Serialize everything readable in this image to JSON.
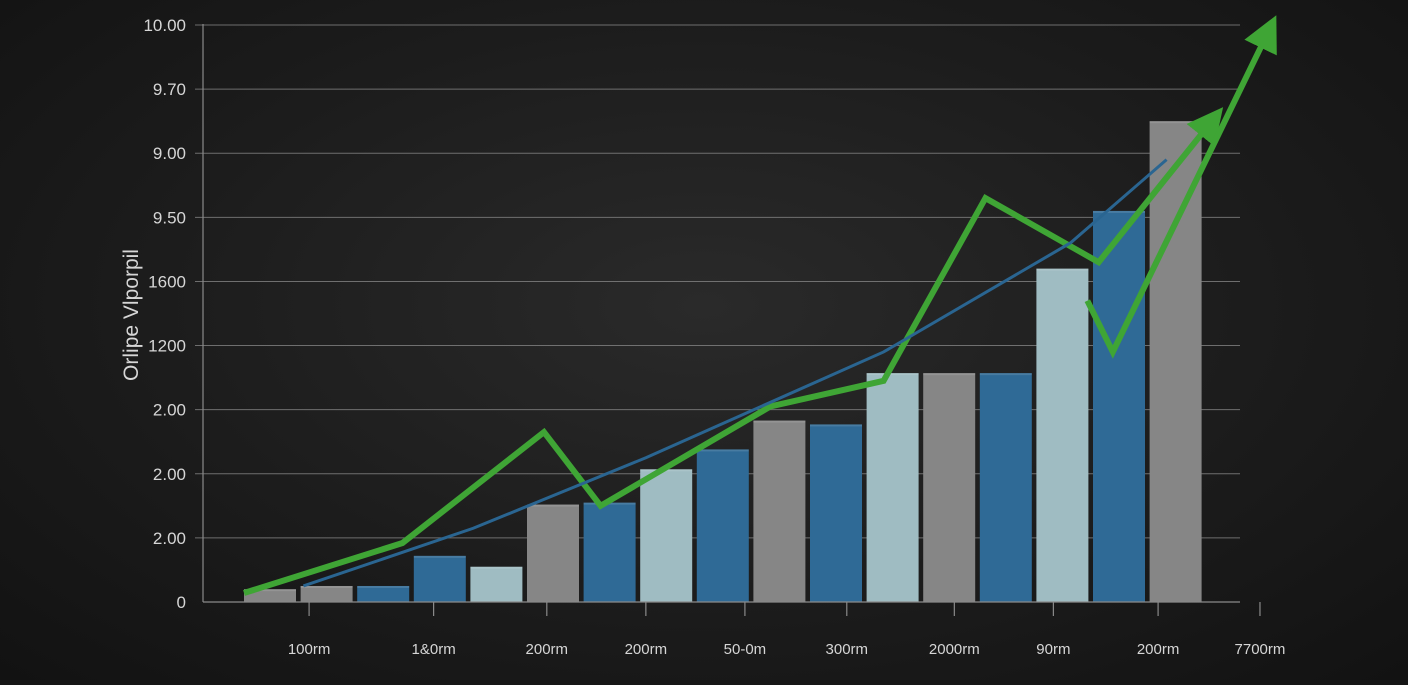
{
  "chart_data": {
    "type": "bar",
    "title": "",
    "ylabel": "Orlipe Vlporpil",
    "xlabel": "",
    "ylim": [
      0,
      9
    ],
    "grid": true,
    "y_ticks": [
      {
        "value": 0,
        "label": "0"
      },
      {
        "value": 1,
        "label": "2.00"
      },
      {
        "value": 2,
        "label": "2.00"
      },
      {
        "value": 3,
        "label": "2.00"
      },
      {
        "value": 4,
        "label": "1200"
      },
      {
        "value": 5,
        "label": "1600"
      },
      {
        "value": 6,
        "label": "9.50"
      },
      {
        "value": 7,
        "label": "9.00"
      },
      {
        "value": 8,
        "label": "9.70"
      },
      {
        "value": 9,
        "label": "10.00"
      }
    ],
    "x_ticks": [
      {
        "label": "100rm",
        "pos": 1.15
      },
      {
        "label": "1&0rm",
        "pos": 3.35
      },
      {
        "label": "200rm",
        "pos": 5.35
      },
      {
        "label": "200rm",
        "pos": 7.1
      },
      {
        "label": "50-0m",
        "pos": 8.85
      },
      {
        "label": "300rm",
        "pos": 10.65
      },
      {
        "label": "2000rm",
        "pos": 12.55
      },
      {
        "label": "90rm",
        "pos": 14.3
      },
      {
        "label": "200rm",
        "pos": 16.15
      },
      {
        "label": "7700rm",
        "pos": 17.95
      }
    ],
    "bars": [
      {
        "value": 0.2,
        "color": "#868686"
      },
      {
        "value": 0.25,
        "color": "#868686"
      },
      {
        "value": 0.25,
        "color": "#2f6a96"
      },
      {
        "value": 0.72,
        "color": "#2f6a96"
      },
      {
        "value": 0.55,
        "color": "#9fbcc2"
      },
      {
        "value": 1.52,
        "color": "#868686"
      },
      {
        "value": 1.55,
        "color": "#2f6a96"
      },
      {
        "value": 2.07,
        "color": "#9fbcc2"
      },
      {
        "value": 2.38,
        "color": "#2f6a96"
      },
      {
        "value": 2.83,
        "color": "#868686"
      },
      {
        "value": 2.77,
        "color": "#2f6a96"
      },
      {
        "value": 3.57,
        "color": "#9fbcc2"
      },
      {
        "value": 3.57,
        "color": "#868686"
      },
      {
        "value": 3.57,
        "color": "#2f6a96"
      },
      {
        "value": 5.2,
        "color": "#9fbcc2"
      },
      {
        "value": 6.1,
        "color": "#2f6a96"
      },
      {
        "value": 7.5,
        "color": "#868686"
      }
    ],
    "series": [
      {
        "values": [
          {
            "x": 0,
            "y": 0.14
          },
          {
            "x": 2.8,
            "y": 0.92
          },
          {
            "x": 5.3,
            "y": 2.65
          },
          {
            "x": 6.3,
            "y": 1.5
          },
          {
            "x": 9.3,
            "y": 3.05
          },
          {
            "x": 11.3,
            "y": 3.45
          },
          {
            "x": 13.1,
            "y": 6.3
          },
          {
            "x": 15.1,
            "y": 5.3
          },
          {
            "x": 17.1,
            "y": 7.5
          }
        ],
        "color": "#3fa535",
        "arrow": true
      },
      {
        "values": [
          {
            "x": 14.9,
            "y": 4.7
          },
          {
            "x": 15.35,
            "y": 3.9
          },
          {
            "x": 18.1,
            "y": 8.9
          }
        ],
        "color": "#3fa535",
        "arrow": true
      },
      {
        "values": [
          {
            "x": 1.05,
            "y": 0.25
          },
          {
            "x": 4.05,
            "y": 1.15
          },
          {
            "x": 7.1,
            "y": 2.25
          },
          {
            "x": 11.3,
            "y": 3.9
          },
          {
            "x": 14.6,
            "y": 5.6
          },
          {
            "x": 16.3,
            "y": 6.9
          }
        ],
        "color": "#2a6591",
        "arrow": false
      }
    ],
    "colors": {
      "background": "#1c1c1c",
      "grid": "#8a8a8a",
      "axis_text": "#d6d6d6",
      "bar_gray": "#868686",
      "bar_blue": "#2f6a96",
      "bar_light": "#9fbcc2",
      "trend_green": "#3fa535",
      "trend_blue": "#2a6591"
    }
  }
}
